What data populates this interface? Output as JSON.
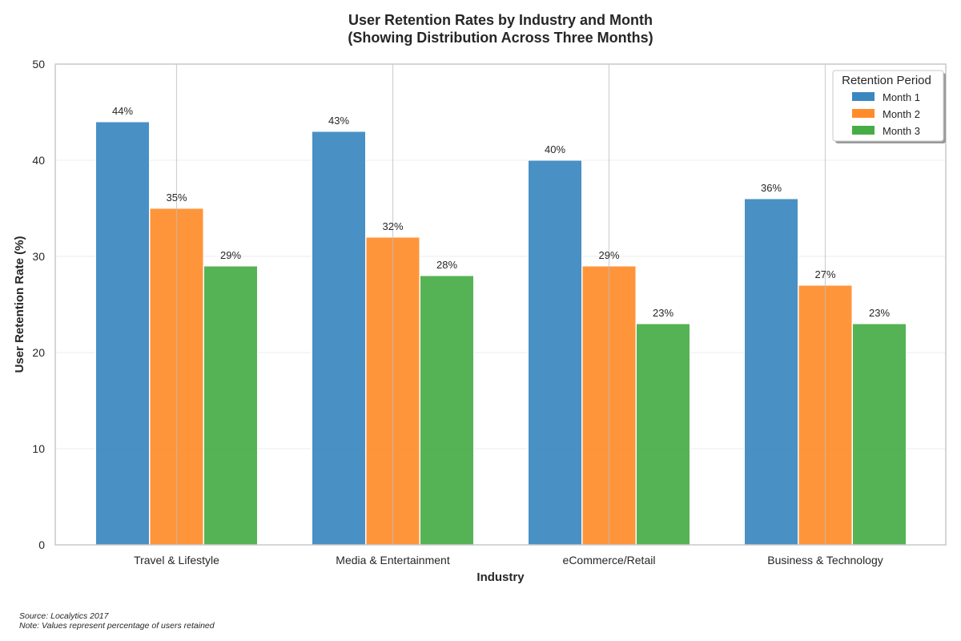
{
  "chart_data": {
    "type": "bar",
    "title": "User Retention Rates by Industry and Month",
    "subtitle": "(Showing Distribution Across Three Months)",
    "xlabel": "Industry",
    "ylabel": "User Retention Rate (%)",
    "ylim": [
      0,
      50
    ],
    "yticks": [
      "0",
      "10",
      "20",
      "30",
      "40",
      "50"
    ],
    "grid": true,
    "legend_position": "top-right",
    "legend_title": "Retention Period",
    "categories": [
      "Travel & Lifestyle",
      "Media & Entertainment",
      "eCommerce/Retail",
      "Business & Technology"
    ],
    "series": [
      {
        "name": "Month 1",
        "color": "#3a87c0",
        "values": [
          44,
          43,
          40,
          36
        ],
        "labels": [
          "44%",
          "43%",
          "40%",
          "36%"
        ]
      },
      {
        "name": "Month 2",
        "color": "#ff8c2a",
        "values": [
          35,
          32,
          29,
          27
        ],
        "labels": [
          "35%",
          "32%",
          "29%",
          "27%"
        ]
      },
      {
        "name": "Month 3",
        "color": "#46ad46",
        "values": [
          29,
          28,
          23,
          23
        ],
        "labels": [
          "29%",
          "28%",
          "23%",
          "23%"
        ]
      }
    ]
  },
  "footnote": {
    "source": "Source: Localytics 2017",
    "note": "Note: Values represent percentage of users retained"
  }
}
